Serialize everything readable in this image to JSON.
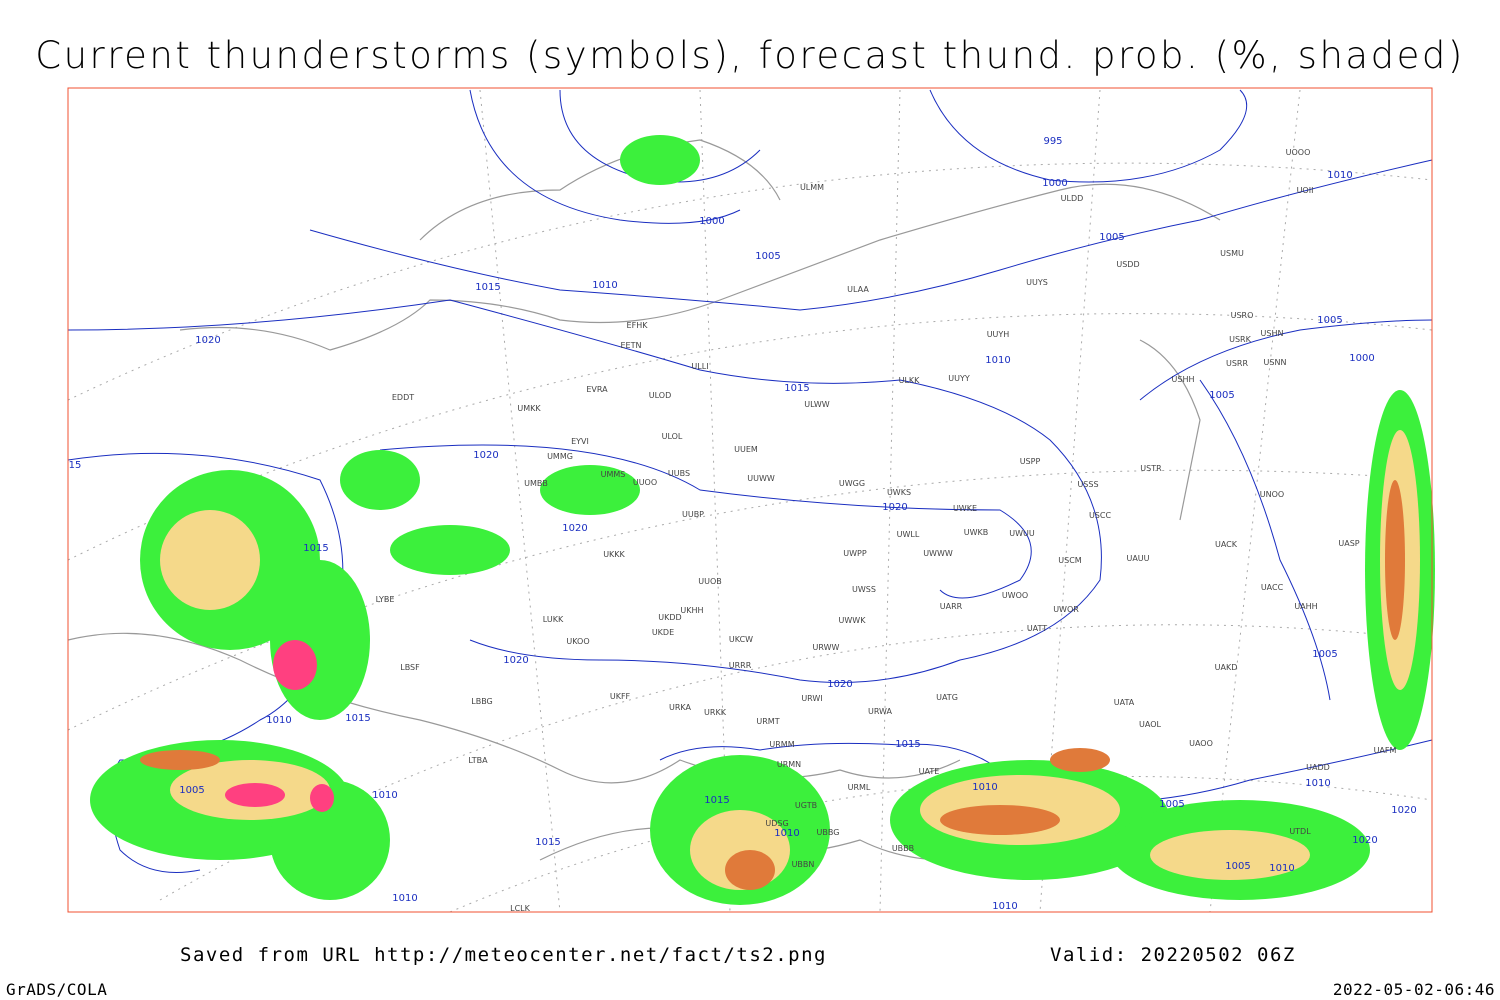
{
  "header": {
    "title": "Current thunderstorms (symbols), forecast thund. prob. (%, shaded)"
  },
  "footer": {
    "saved": "Saved from URL http://meteocenter.net/fact/ts2.png",
    "valid": "Valid: 20220502 06Z",
    "software": "GrADS/COLA",
    "timestamp": "2022-05-02-06:46"
  },
  "isobar_labels": [
    "995",
    "1000",
    "1000",
    "1005",
    "1005",
    "1010",
    "1010",
    "1015",
    "1020",
    "1010",
    "1015",
    "1005",
    "1000",
    "1005",
    "1020",
    "1020",
    "1020",
    "1015",
    "1020",
    "1020",
    "1005",
    "1010",
    "1015",
    "1015",
    "1010",
    "1005",
    "1010",
    "1015",
    "1005",
    "1010",
    "1020",
    "1010",
    "1015",
    "1020",
    "1005",
    "1010",
    "1010",
    "1010",
    "15"
  ],
  "stations": [
    "UOOO",
    "UOII",
    "ULDD",
    "ULMM",
    "USMU",
    "USDD",
    "UUYS",
    "ULAA",
    "USRO",
    "USRK",
    "USHN",
    "USNN",
    "USRR",
    "UUYH",
    "EFHK",
    "EETN",
    "ULLI",
    "USHH",
    "ULKK",
    "UUYY",
    "EVRA",
    "ULOD",
    "EDDT",
    "UMKK",
    "ULWW",
    "EYVI",
    "ULOL",
    "UUEM",
    "UMMG",
    "USPP",
    "UMMS",
    "UUBS",
    "UUWW",
    "UWGG",
    "USSS",
    "USTR",
    "UMBB",
    "UUOO",
    "UNOO",
    "UWKS",
    "UWKE",
    "UUBP",
    "USCC",
    "UWLL",
    "UWKB",
    "UWUU",
    "UACK",
    "UASP",
    "UKKK",
    "UWPP",
    "UWWW",
    "UAUU",
    "USCM",
    "UUOB",
    "UWSS",
    "UACC",
    "LYBE",
    "UKDD",
    "UKHH",
    "UWOO",
    "UARR",
    "UWOR",
    "UAHH",
    "LUKK",
    "UKOO",
    "UKDE",
    "UKCW",
    "UWWK",
    "UATT",
    "URWW",
    "LBSF",
    "URRR",
    "UAKD",
    "LBBG",
    "UKFF",
    "URWI",
    "UATG",
    "URKA",
    "URKK",
    "UATA",
    "URMT",
    "URWA",
    "UAOL",
    "URMM",
    "UATE",
    "UAOO",
    "UAFM",
    "URMN",
    "UADD",
    "LTBA",
    "URML",
    "UGTB",
    "UDSG",
    "UBBG",
    "UTDL",
    "UBBN",
    "UBBB",
    "LCLK"
  ]
}
